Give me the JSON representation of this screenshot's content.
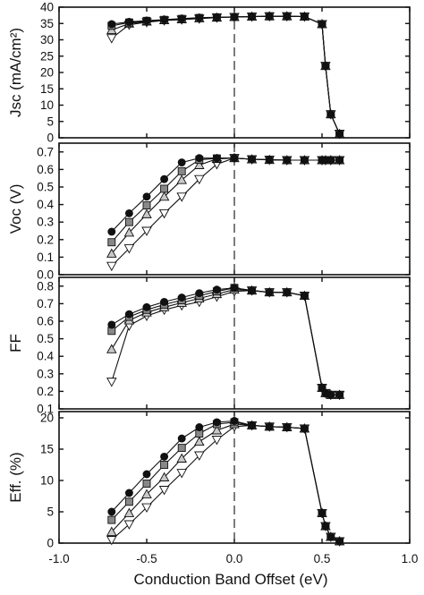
{
  "chart_data": [
    {
      "type": "line",
      "ylabel": "Jsc (mA/cm²)",
      "ylim": [
        0,
        40
      ],
      "yticks": [
        "0",
        "5",
        "10",
        "15",
        "20",
        "25",
        "30",
        "35",
        "40"
      ],
      "xlim": [
        -1.0,
        1.0
      ],
      "reference_line_x": 0.0,
      "x": [
        -0.7,
        -0.6,
        -0.5,
        -0.4,
        -0.3,
        -0.2,
        -0.1,
        0.0,
        0.1,
        0.2,
        0.3,
        0.4,
        0.5,
        0.52,
        0.55,
        0.6
      ],
      "series": [
        {
          "marker": "circle",
          "fill": "#111111",
          "values": [
            34.8,
            35.5,
            35.9,
            36.2,
            36.5,
            36.8,
            36.9,
            37.0,
            37.1,
            37.2,
            37.2,
            37.1,
            34.8,
            22.0,
            7.2,
            1.2
          ]
        },
        {
          "marker": "square",
          "fill": "#888888",
          "values": [
            34.3,
            35.3,
            35.8,
            36.1,
            36.4,
            36.7,
            36.9,
            37.0,
            37.1,
            37.2,
            37.2,
            37.1,
            34.8,
            22.0,
            7.2,
            1.2
          ]
        },
        {
          "marker": "triangle-up",
          "fill": "#c8c8c8",
          "values": [
            33.0,
            35.0,
            35.6,
            36.0,
            36.3,
            36.6,
            36.8,
            37.0,
            37.1,
            37.2,
            37.2,
            37.1,
            34.8,
            22.0,
            7.2,
            1.2
          ]
        },
        {
          "marker": "triangle-down",
          "fill": "#ffffff",
          "values": [
            30.5,
            34.6,
            35.4,
            35.9,
            36.2,
            36.5,
            36.8,
            37.0,
            37.1,
            37.2,
            37.2,
            37.1,
            34.8,
            22.0,
            7.2,
            1.2
          ]
        }
      ]
    },
    {
      "type": "line",
      "ylabel": "Voc (V)",
      "ylim": [
        0,
        0.75
      ],
      "yticks": [
        "0.0",
        "0.1",
        "0.2",
        "0.3",
        "0.4",
        "0.5",
        "0.6",
        "0.7"
      ],
      "xlim": [
        -1.0,
        1.0
      ],
      "reference_line_x": 0.0,
      "x": [
        -0.7,
        -0.6,
        -0.5,
        -0.4,
        -0.3,
        -0.2,
        -0.1,
        0.0,
        0.1,
        0.2,
        0.3,
        0.4,
        0.5,
        0.52,
        0.55,
        0.6
      ],
      "series": [
        {
          "marker": "circle",
          "fill": "#111111",
          "values": [
            0.245,
            0.35,
            0.445,
            0.545,
            0.64,
            0.665,
            0.665,
            0.665,
            0.658,
            0.655,
            0.653,
            0.653,
            0.653,
            0.653,
            0.653,
            0.653
          ]
        },
        {
          "marker": "square",
          "fill": "#888888",
          "values": [
            0.185,
            0.3,
            0.395,
            0.49,
            0.59,
            0.655,
            0.663,
            0.665,
            0.658,
            0.655,
            0.653,
            0.653,
            0.653,
            0.653,
            0.653,
            0.653
          ]
        },
        {
          "marker": "triangle-up",
          "fill": "#c8c8c8",
          "values": [
            0.12,
            0.24,
            0.345,
            0.445,
            0.54,
            0.625,
            0.66,
            0.665,
            0.658,
            0.655,
            0.653,
            0.653,
            0.653,
            0.653,
            0.653,
            0.653
          ]
        },
        {
          "marker": "triangle-down",
          "fill": "#ffffff",
          "values": [
            0.05,
            0.15,
            0.25,
            0.35,
            0.445,
            0.545,
            0.63,
            0.665,
            0.658,
            0.655,
            0.653,
            0.653,
            0.653,
            0.653,
            0.653,
            0.653
          ]
        }
      ]
    },
    {
      "type": "line",
      "ylabel": "FF",
      "ylim": [
        0.1,
        0.85
      ],
      "yticks": [
        "0.1",
        "0.2",
        "0.3",
        "0.4",
        "0.5",
        "0.6",
        "0.7",
        "0.8"
      ],
      "xlim": [
        -1.0,
        1.0
      ],
      "reference_line_x": 0.0,
      "x": [
        -0.7,
        -0.6,
        -0.5,
        -0.4,
        -0.3,
        -0.2,
        -0.1,
        0.0,
        0.1,
        0.2,
        0.3,
        0.4,
        0.5,
        0.52,
        0.55,
        0.6
      ],
      "series": [
        {
          "marker": "circle",
          "fill": "#111111",
          "values": [
            0.58,
            0.64,
            0.68,
            0.71,
            0.735,
            0.76,
            0.78,
            0.79,
            0.775,
            0.765,
            0.765,
            0.745,
            0.22,
            0.19,
            0.18,
            0.18
          ]
        },
        {
          "marker": "square",
          "fill": "#888888",
          "values": [
            0.545,
            0.625,
            0.665,
            0.695,
            0.72,
            0.745,
            0.77,
            0.79,
            0.775,
            0.765,
            0.765,
            0.745,
            0.22,
            0.19,
            0.18,
            0.18
          ]
        },
        {
          "marker": "triangle-up",
          "fill": "#c8c8c8",
          "values": [
            0.44,
            0.605,
            0.65,
            0.68,
            0.705,
            0.73,
            0.755,
            0.78,
            0.775,
            0.765,
            0.765,
            0.745,
            0.22,
            0.19,
            0.18,
            0.18
          ]
        },
        {
          "marker": "triangle-down",
          "fill": "#ffffff",
          "values": [
            0.255,
            0.575,
            0.63,
            0.665,
            0.69,
            0.71,
            0.74,
            0.77,
            0.775,
            0.765,
            0.765,
            0.745,
            0.22,
            0.19,
            0.18,
            0.18
          ]
        }
      ]
    },
    {
      "type": "line",
      "ylabel": "Eff. (%)",
      "ylim": [
        0,
        21
      ],
      "yticks": [
        "0",
        "5",
        "10",
        "15",
        "20"
      ],
      "xlim": [
        -1.0,
        1.0
      ],
      "xticks": [
        "-1.0",
        "-0.5",
        "0.0",
        "0.5",
        "1.0"
      ],
      "xlabel": "Conduction Band Offset (eV)",
      "reference_line_x": 0.0,
      "x": [
        -0.7,
        -0.6,
        -0.5,
        -0.4,
        -0.3,
        -0.2,
        -0.1,
        0.0,
        0.1,
        0.2,
        0.3,
        0.4,
        0.5,
        0.52,
        0.55,
        0.6
      ],
      "series": [
        {
          "marker": "circle",
          "fill": "#111111",
          "values": [
            5.0,
            8.0,
            11.0,
            13.8,
            16.7,
            18.5,
            19.3,
            19.5,
            18.8,
            18.6,
            18.5,
            18.3,
            4.8,
            2.7,
            1.0,
            0.3
          ]
        },
        {
          "marker": "square",
          "fill": "#888888",
          "values": [
            3.7,
            6.6,
            9.5,
            12.5,
            15.2,
            17.5,
            19.0,
            19.3,
            18.8,
            18.6,
            18.5,
            18.3,
            4.8,
            2.7,
            1.0,
            0.3
          ]
        },
        {
          "marker": "triangle-up",
          "fill": "#c8c8c8",
          "values": [
            1.8,
            4.8,
            7.8,
            10.5,
            13.5,
            16.2,
            18.0,
            19.0,
            18.8,
            18.6,
            18.5,
            18.3,
            4.8,
            2.7,
            1.0,
            0.3
          ]
        },
        {
          "marker": "triangle-down",
          "fill": "#ffffff",
          "values": [
            0.5,
            3.0,
            5.7,
            8.5,
            11.2,
            14.0,
            16.5,
            18.6,
            18.8,
            18.6,
            18.5,
            18.3,
            4.8,
            2.7,
            1.0,
            0.3
          ]
        }
      ]
    }
  ]
}
